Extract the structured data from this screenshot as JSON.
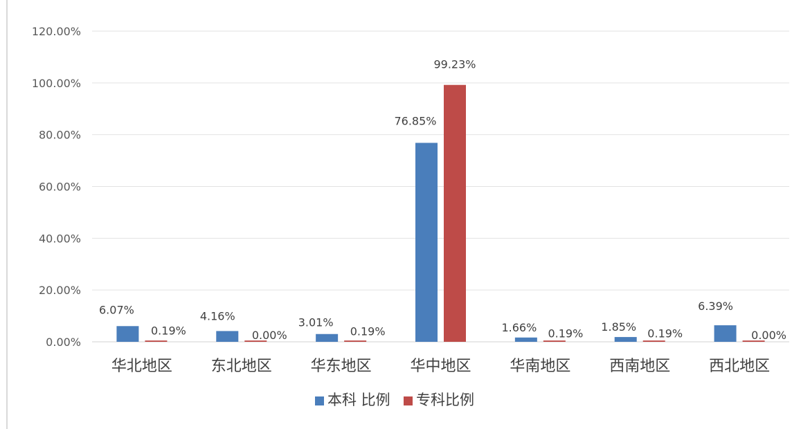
{
  "chart_data": {
    "type": "bar",
    "categories": [
      "华北地区",
      "东北地区",
      "华东地区",
      "华中地区",
      "华南地区",
      "西南地区",
      "西北地区"
    ],
    "series": [
      {
        "name": "本科 比例",
        "color": "#4a7ebb",
        "values": [
          6.07,
          4.16,
          3.01,
          76.85,
          1.66,
          1.85,
          6.39
        ],
        "labels": [
          "6.07%",
          "4.16%",
          "3.01%",
          "76.85%",
          "1.66%",
          "1.85%",
          "6.39%"
        ]
      },
      {
        "name": "专科比例",
        "color": "#be4b48",
        "values": [
          0.19,
          0.0,
          0.19,
          99.23,
          0.19,
          0.19,
          0.0
        ],
        "labels": [
          "0.19%",
          "0.00%",
          "0.19%",
          "99.23%",
          "0.19%",
          "0.19%",
          "0.00%"
        ]
      }
    ],
    "yticks": [
      "0.00%",
      "20.00%",
      "40.00%",
      "60.00%",
      "80.00%",
      "100.00%",
      "120.00%"
    ],
    "ylim": [
      0,
      120
    ],
    "grid": true,
    "legend": "bottom"
  }
}
